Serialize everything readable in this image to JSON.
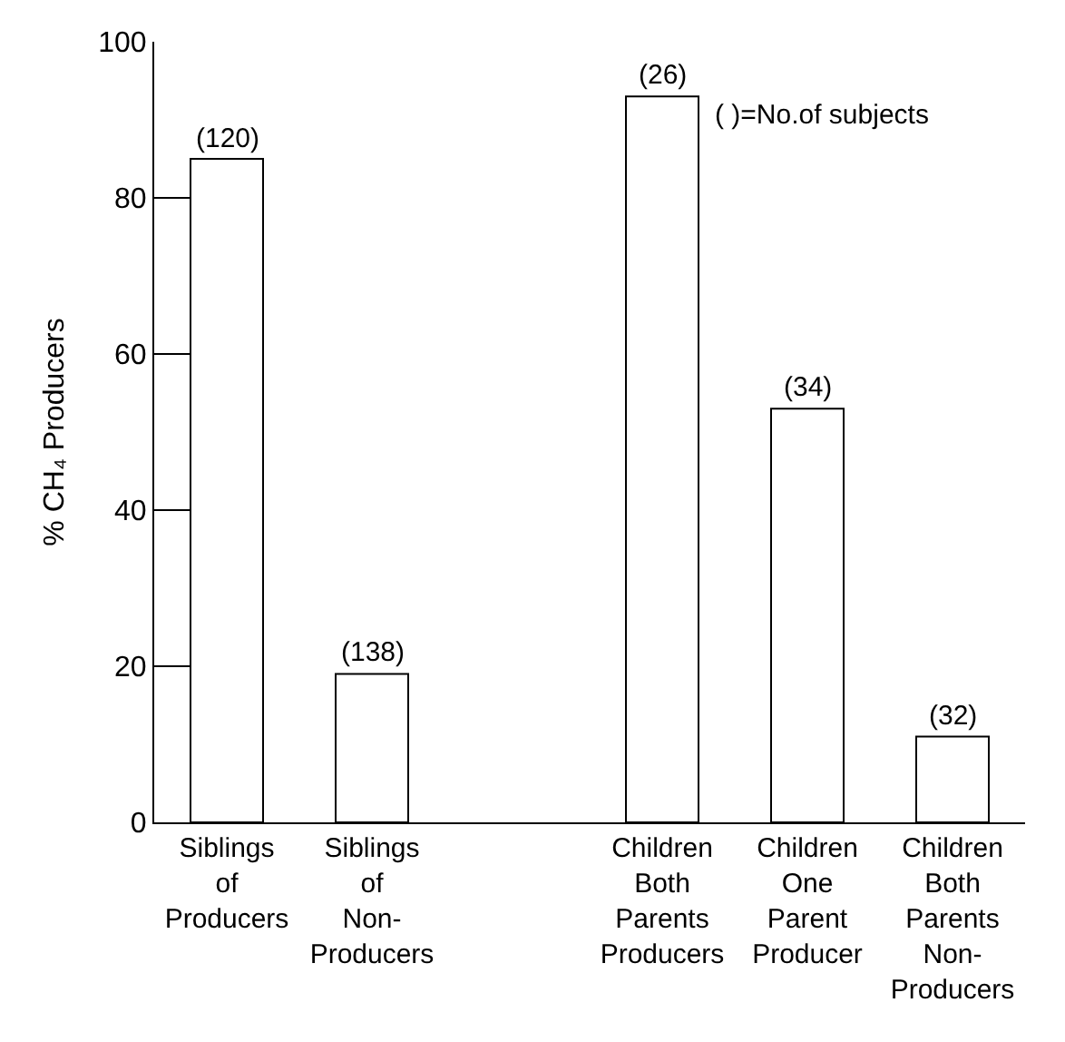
{
  "chart_data": {
    "type": "bar",
    "ylabel": "% CH₄ Producers",
    "categories": [
      "Siblings\nof\nProducers",
      "Siblings\nof\nNon-\nProducers",
      null,
      "Children\nBoth\nParents\nProducers",
      "Children\nOne\nParent\nProducer",
      "Children\nBoth\nParents\nNon-\nProducers"
    ],
    "values": [
      85,
      19,
      null,
      93,
      53,
      11
    ],
    "color": "#ffffff",
    "annotations": [
      {
        "text": "(120)",
        "x": "Siblings\nof\nProducers",
        "y": 85
      },
      {
        "text": "(138)",
        "x": "Siblings\nof\nNon-\nProducers",
        "y": 19
      },
      {
        "text": "(26)",
        "x": "Children\nBoth\nParents\nProducers",
        "y": 93
      },
      {
        "text": "(34)",
        "x": "Children\nOne\nParent\nProducer",
        "y": 53
      },
      {
        "text": "(32)",
        "x": "Children\nBoth\nParents\nNon-\nProducers",
        "y": 11
      },
      "( )=No.of subjects"
    ],
    "ylim": [
      0,
      100
    ],
    "yticks": [
      0,
      20,
      40,
      60,
      80,
      100
    ]
  }
}
